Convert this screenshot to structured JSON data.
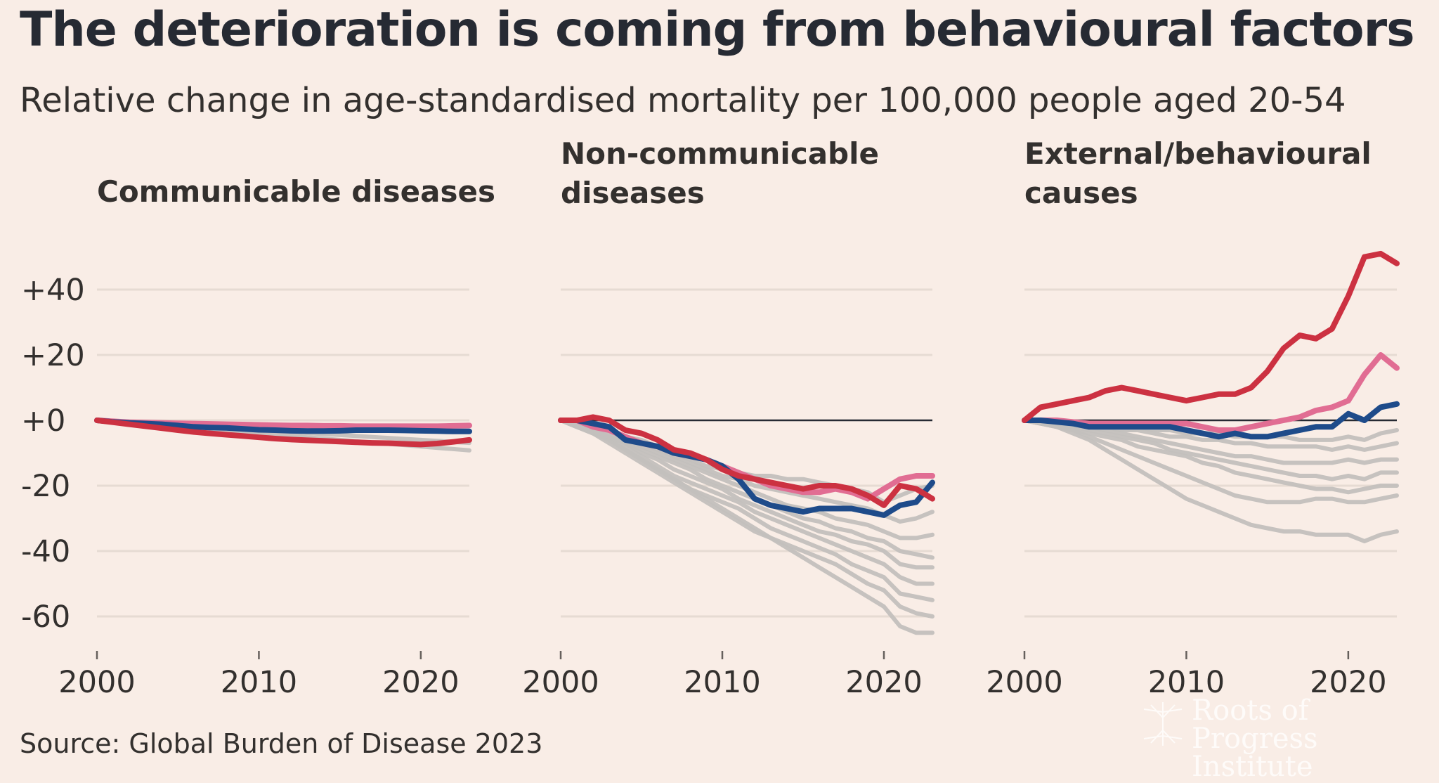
{
  "chart_data": {
    "type": "line",
    "title": "The deterioration is coming from behavioural factors",
    "subtitle": "Relative change in age-standardised mortality per 100,000 people aged 20-54",
    "source": "Source: Global Burden of Disease 2023",
    "watermark": "Roots of Progress Institute",
    "y_ticks": [
      40,
      20,
      0,
      -20,
      -40,
      -60
    ],
    "y_tick_labels": [
      "+40",
      "+20",
      "+0",
      "-20",
      "-40",
      "-60"
    ],
    "ylim": [
      -70,
      55
    ],
    "x_ticks": [
      2000,
      2010,
      2020
    ],
    "xlim": [
      2000,
      2023
    ],
    "colors": {
      "red": "#cc3141",
      "pink": "#e16d93",
      "blue": "#1e4b8a",
      "grey": "#c3c0bd"
    },
    "panels": [
      {
        "title_lines": [
          "Communicable diseases"
        ],
        "zero_line": false,
        "grey_series": [
          [
            0,
            -0.3,
            -0.6,
            -0.9,
            -1.2,
            -1.5,
            -1.8,
            -2.1,
            -2.4,
            -2.7,
            -3,
            -3.3,
            -3.6,
            -3.9,
            -4.2,
            -4.5,
            -4.8,
            -5.1,
            -5.4,
            -5.7,
            -6,
            -6.3,
            -6.6,
            -6.9
          ],
          [
            0,
            -0.4,
            -0.8,
            -1.2,
            -1.6,
            -2,
            -2.4,
            -2.8,
            -3.2,
            -3.6,
            -4,
            -4.4,
            -4.8,
            -5.2,
            -5.6,
            -6,
            -6.4,
            -6.8,
            -7.2,
            -7.6,
            -8,
            -8.4,
            -8.8,
            -9.2
          ]
        ],
        "series": [
          {
            "name": "pink",
            "values": [
              0,
              -0.3,
              -0.6,
              -0.7,
              -0.8,
              -0.9,
              -1,
              -1.1,
              -1.2,
              -1.3,
              -1.4,
              -1.5,
              -1.6,
              -1.6,
              -1.7,
              -1.7,
              -1.8,
              -1.8,
              -1.8,
              -1.8,
              -1.8,
              -1.8,
              -1.7,
              -1.6
            ]
          },
          {
            "name": "blue",
            "values": [
              0,
              -0.5,
              -0.8,
              -1,
              -1.2,
              -1.6,
              -2,
              -2.2,
              -2.3,
              -2.6,
              -2.9,
              -3,
              -3.2,
              -3.3,
              -3.3,
              -3.2,
              -3,
              -3,
              -3,
              -3.1,
              -3.2,
              -3.3,
              -3.4,
              -3.4
            ]
          },
          {
            "name": "red",
            "values": [
              0,
              -0.6,
              -1.2,
              -1.8,
              -2.4,
              -3,
              -3.6,
              -4,
              -4.4,
              -4.8,
              -5.2,
              -5.6,
              -5.9,
              -6.1,
              -6.3,
              -6.5,
              -6.7,
              -6.9,
              -7,
              -7.2,
              -7.4,
              -7.1,
              -6.6,
              -6
            ]
          }
        ]
      },
      {
        "title_lines": [
          "Non-communicable",
          "diseases"
        ],
        "zero_line": true,
        "grey_series": [
          [
            0,
            -2,
            -4,
            -6,
            -9,
            -12,
            -15,
            -18,
            -21,
            -24,
            -27,
            -30,
            -33,
            -36,
            -39,
            -42,
            -45,
            -48,
            -51,
            -54,
            -57,
            -63,
            -65,
            -65
          ],
          [
            0,
            -2,
            -4,
            -7,
            -10,
            -13,
            -16,
            -19,
            -22,
            -25,
            -28,
            -31,
            -34,
            -36,
            -38,
            -40,
            -42,
            -44,
            -47,
            -50,
            -52,
            -57,
            -59,
            -60
          ],
          [
            0,
            -2,
            -4,
            -6,
            -9,
            -12,
            -15,
            -18,
            -21,
            -23,
            -25,
            -27,
            -30,
            -33,
            -35,
            -37,
            -39,
            -41,
            -44,
            -46,
            -48,
            -53,
            -54,
            -55
          ],
          [
            0,
            -2,
            -3,
            -5,
            -8,
            -11,
            -14,
            -17,
            -19,
            -21,
            -23,
            -25,
            -28,
            -30,
            -32,
            -34,
            -36,
            -38,
            -40,
            -42,
            -44,
            -48,
            -50,
            -50
          ],
          [
            0,
            -2,
            -3,
            -5,
            -7,
            -10,
            -12,
            -15,
            -17,
            -19,
            -21,
            -24,
            -26,
            -28,
            -30,
            -32,
            -34,
            -35,
            -37,
            -38,
            -40,
            -44,
            -45,
            -45
          ],
          [
            0,
            -1,
            -3,
            -5,
            -7,
            -9,
            -11,
            -13,
            -15,
            -18,
            -20,
            -22,
            -24,
            -26,
            -28,
            -30,
            -31,
            -33,
            -34,
            -36,
            -37,
            -40,
            -41,
            -42
          ],
          [
            0,
            -1,
            -2,
            -4,
            -6,
            -8,
            -10,
            -12,
            -14,
            -16,
            -18,
            -20,
            -22,
            -24,
            -26,
            -27,
            -28,
            -30,
            -31,
            -32,
            -34,
            -36,
            -36,
            -35
          ],
          [
            0,
            -1,
            -2,
            -3,
            -5,
            -7,
            -9,
            -11,
            -13,
            -15,
            -17,
            -18,
            -20,
            -21,
            -22,
            -23,
            -24,
            -25,
            -26,
            -27,
            -29,
            -31,
            -30,
            -28
          ],
          [
            0,
            -1,
            -2,
            -3,
            -5,
            -6,
            -8,
            -10,
            -12,
            -14,
            -15,
            -16,
            -17,
            -17,
            -18,
            -18,
            -19,
            -20,
            -21,
            -22,
            -25,
            -23,
            -21,
            -20
          ]
        ],
        "series": [
          {
            "name": "pink",
            "values": [
              0,
              0,
              -2,
              -3,
              -5,
              -7,
              -8,
              -10,
              -11,
              -12,
              -14,
              -16,
              -18,
              -20,
              -21,
              -22,
              -22,
              -21,
              -22,
              -24,
              -21,
              -18,
              -17,
              -17
            ]
          },
          {
            "name": "blue",
            "values": [
              0,
              0,
              -1,
              -2,
              -6,
              -7,
              -8,
              -10,
              -11,
              -12,
              -14,
              -18,
              -24,
              -26,
              -27,
              -28,
              -27,
              -27,
              -27,
              -28,
              -29,
              -26,
              -25,
              -19
            ]
          },
          {
            "name": "red",
            "values": [
              0,
              0,
              1,
              0,
              -3,
              -4,
              -6,
              -9,
              -10,
              -12,
              -15,
              -17,
              -18,
              -19,
              -20,
              -21,
              -20,
              -20,
              -21,
              -23,
              -26,
              -20,
              -21,
              -24
            ]
          }
        ]
      },
      {
        "title_lines": [
          "External/behavioural",
          "causes"
        ],
        "zero_line": true,
        "grey_series": [
          [
            0,
            -1,
            -2,
            -4,
            -6,
            -9,
            -12,
            -15,
            -18,
            -21,
            -24,
            -26,
            -28,
            -30,
            -32,
            -33,
            -34,
            -34,
            -35,
            -35,
            -35,
            -37,
            -35,
            -34
          ],
          [
            0,
            -1,
            -2,
            -3,
            -5,
            -7,
            -9,
            -11,
            -13,
            -15,
            -17,
            -19,
            -21,
            -23,
            -24,
            -25,
            -25,
            -25,
            -24,
            -24,
            -25,
            -25,
            -24,
            -23
          ],
          [
            0,
            -1,
            -2,
            -3,
            -4,
            -5,
            -6,
            -8,
            -9,
            -10,
            -11,
            -13,
            -14,
            -16,
            -17,
            -18,
            -19,
            -20,
            -21,
            -21,
            -22,
            -21,
            -20,
            -20
          ],
          [
            0,
            -1,
            -1,
            -2,
            -3,
            -4,
            -5,
            -6,
            -7,
            -9,
            -10,
            -11,
            -12,
            -13,
            -14,
            -15,
            -16,
            -17,
            -17,
            -18,
            -17,
            -18,
            -16,
            -16
          ],
          [
            0,
            -1,
            -1,
            -2,
            -2,
            -3,
            -4,
            -5,
            -6,
            -7,
            -8,
            -9,
            -10,
            -11,
            -11,
            -12,
            -13,
            -13,
            -13,
            -13,
            -12,
            -13,
            -12,
            -12
          ],
          [
            0,
            -1,
            -1,
            -1,
            -2,
            -2,
            -3,
            -3,
            -4,
            -5,
            -5,
            -6,
            -6,
            -7,
            -7,
            -8,
            -8,
            -8,
            -8,
            -9,
            -8,
            -9,
            -8,
            -7
          ],
          [
            0,
            0,
            -1,
            -1,
            -1,
            -2,
            -2,
            -2,
            -3,
            -3,
            -4,
            -4,
            -4,
            -5,
            -5,
            -5,
            -5,
            -6,
            -6,
            -6,
            -5,
            -6,
            -4,
            -3
          ]
        ],
        "series": [
          {
            "name": "pink",
            "values": [
              0,
              0,
              0,
              -0.5,
              -1,
              -1,
              -1,
              -1,
              -1,
              -1,
              -1,
              -2,
              -3,
              -3,
              -2,
              -1,
              0,
              1,
              3,
              4,
              6,
              14,
              20,
              16
            ]
          },
          {
            "name": "blue",
            "values": [
              0,
              0,
              -0.5,
              -1,
              -2,
              -2,
              -2,
              -2,
              -2,
              -2,
              -3,
              -4,
              -5,
              -4,
              -5,
              -5,
              -4,
              -3,
              -2,
              -2,
              2,
              0,
              4,
              5
            ]
          },
          {
            "name": "red",
            "values": [
              0,
              4,
              5,
              6,
              7,
              9,
              10,
              9,
              8,
              7,
              6,
              7,
              8,
              8,
              10,
              15,
              22,
              26,
              25,
              28,
              38,
              50,
              51,
              48
            ]
          }
        ]
      }
    ]
  }
}
